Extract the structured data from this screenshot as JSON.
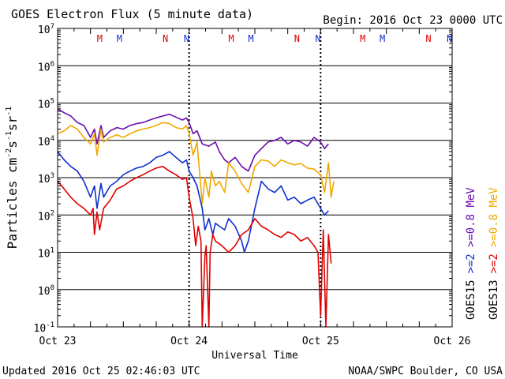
{
  "chart_data": {
    "type": "line",
    "title": "GOES Electron Flux (5 minute data)",
    "begin_label": "Begin: 2016 Oct 23 0000 UTC",
    "xlabel": "Universal Time",
    "ylabel": {
      "prefix": "Particles cm",
      "exp1": "-2",
      "s": "s",
      "exp2": "-1",
      "sr": "sr",
      "exp3": "-1"
    },
    "y_scale": "log",
    "ylim": [
      0.1,
      10000000
    ],
    "y_ticks": [
      {
        "exp": -1,
        "label_base": "10",
        "label_exp": "-1"
      },
      {
        "exp": 0,
        "label_base": "10",
        "label_exp": "0"
      },
      {
        "exp": 1,
        "label_base": "10",
        "label_exp": "1"
      },
      {
        "exp": 2,
        "label_base": "10",
        "label_exp": "2"
      },
      {
        "exp": 3,
        "label_base": "10",
        "label_exp": "3"
      },
      {
        "exp": 4,
        "label_base": "10",
        "label_exp": "4"
      },
      {
        "exp": 5,
        "label_base": "10",
        "label_exp": "5"
      },
      {
        "exp": 6,
        "label_base": "10",
        "label_exp": "6"
      },
      {
        "exp": 7,
        "label_base": "10",
        "label_exp": "7"
      }
    ],
    "x_unit": "days since 2016 Oct 23 0000 UTC",
    "xlim": [
      0,
      3
    ],
    "x_ticks": [
      {
        "value": 0,
        "label": "Oct 23"
      },
      {
        "value": 1,
        "label": "Oct 24"
      },
      {
        "value": 2,
        "label": "Oct 25"
      },
      {
        "value": 3,
        "label": "Oct 26"
      }
    ],
    "threshold_line": {
      "value": 1000,
      "style": "dashed"
    },
    "markers": [
      {
        "label": "M",
        "x": 0.32,
        "color": "#e00000"
      },
      {
        "label": "M",
        "x": 0.47,
        "color": "#1030d0"
      },
      {
        "label": "N",
        "x": 0.82,
        "color": "#e00000"
      },
      {
        "label": "N",
        "x": 0.98,
        "color": "#1030d0"
      },
      {
        "label": "M",
        "x": 1.32,
        "color": "#e00000"
      },
      {
        "label": "M",
        "x": 1.47,
        "color": "#1030d0"
      },
      {
        "label": "N",
        "x": 1.82,
        "color": "#e00000"
      },
      {
        "label": "N",
        "x": 1.98,
        "color": "#1030d0"
      },
      {
        "label": "M",
        "x": 2.32,
        "color": "#e00000"
      },
      {
        "label": "M",
        "x": 2.47,
        "color": "#1030d0"
      },
      {
        "label": "N",
        "x": 2.82,
        "color": "#e00000"
      },
      {
        "label": "N",
        "x": 2.98,
        "color": "#1030d0"
      }
    ],
    "legend": [
      {
        "sat": "GOES13",
        "energy": ">=0.8 MeV",
        "color": "#f0a800",
        "emph_color": "#e00000"
      },
      {
        "sat": "GOES15",
        "energy": ">=0.8 MeV",
        "color": "#6a0dad",
        "emph_color": "#1030d0"
      }
    ],
    "legend_energies": [
      ">=2",
      ">=2"
    ],
    "series": [
      {
        "name": "GOES15 >=0.8 MeV",
        "color": "#6a0dad",
        "x": [
          0,
          0.05,
          0.1,
          0.15,
          0.2,
          0.25,
          0.28,
          0.3,
          0.33,
          0.35,
          0.4,
          0.45,
          0.5,
          0.55,
          0.6,
          0.65,
          0.7,
          0.75,
          0.8,
          0.85,
          0.9,
          0.95,
          0.98,
          1.0,
          1.03,
          1.06,
          1.1,
          1.15,
          1.2,
          1.23,
          1.27,
          1.3,
          1.35,
          1.4,
          1.45,
          1.5,
          1.55,
          1.6,
          1.65,
          1.7,
          1.75,
          1.8,
          1.85,
          1.9,
          1.95,
          2.0,
          2.03,
          2.06
        ],
        "y": [
          70000,
          55000,
          45000,
          30000,
          25000,
          12000,
          20000,
          8000,
          25000,
          12000,
          18000,
          22000,
          20000,
          25000,
          28000,
          30000,
          35000,
          40000,
          45000,
          50000,
          42000,
          35000,
          40000,
          30000,
          15000,
          18000,
          8000,
          7000,
          9000,
          5000,
          3000,
          2500,
          3500,
          2000,
          1500,
          4000,
          6000,
          9000,
          10000,
          12000,
          8000,
          10000,
          9000,
          7000,
          12000,
          9000,
          6000,
          8000
        ]
      },
      {
        "name": "GOES13 >=0.8 MeV",
        "color": "#f0a800",
        "x": [
          0,
          0.05,
          0.1,
          0.15,
          0.2,
          0.25,
          0.28,
          0.3,
          0.33,
          0.35,
          0.4,
          0.45,
          0.5,
          0.55,
          0.6,
          0.65,
          0.7,
          0.75,
          0.8,
          0.85,
          0.9,
          0.95,
          0.98,
          1.0,
          1.03,
          1.06,
          1.1,
          1.12,
          1.15,
          1.17,
          1.2,
          1.23,
          1.27,
          1.3,
          1.35,
          1.4,
          1.45,
          1.5,
          1.55,
          1.6,
          1.65,
          1.7,
          1.75,
          1.8,
          1.85,
          1.9,
          1.95,
          2.0,
          2.03,
          2.06,
          2.08,
          2.1
        ],
        "y": [
          15000,
          18000,
          25000,
          20000,
          12000,
          8000,
          15000,
          4000,
          20000,
          9000,
          12000,
          14000,
          12000,
          15000,
          18000,
          20000,
          22000,
          25000,
          30000,
          28000,
          22000,
          20000,
          25000,
          15000,
          4000,
          9000,
          200,
          1000,
          300,
          1500,
          600,
          800,
          400,
          2500,
          1500,
          700,
          400,
          2000,
          3000,
          2800,
          2000,
          3000,
          2500,
          2200,
          2400,
          1800,
          1700,
          1200,
          400,
          2500,
          300,
          800
        ]
      },
      {
        "name": "GOES15 >=2 MeV",
        "color": "#1030d0",
        "x": [
          0,
          0.05,
          0.1,
          0.15,
          0.2,
          0.25,
          0.28,
          0.3,
          0.33,
          0.35,
          0.4,
          0.45,
          0.5,
          0.55,
          0.6,
          0.65,
          0.7,
          0.75,
          0.8,
          0.85,
          0.9,
          0.95,
          0.98,
          1.0,
          1.03,
          1.06,
          1.1,
          1.12,
          1.15,
          1.18,
          1.2,
          1.23,
          1.27,
          1.3,
          1.35,
          1.4,
          1.42,
          1.45,
          1.5,
          1.55,
          1.6,
          1.65,
          1.7,
          1.75,
          1.8,
          1.85,
          1.9,
          1.95,
          2.0,
          2.03,
          2.06
        ],
        "y": [
          5000,
          3000,
          2000,
          1500,
          800,
          300,
          600,
          150,
          700,
          300,
          600,
          800,
          1200,
          1500,
          1800,
          2000,
          2500,
          3500,
          4000,
          5000,
          3500,
          2500,
          3000,
          1500,
          1000,
          600,
          150,
          40,
          80,
          30,
          60,
          50,
          40,
          80,
          50,
          20,
          10,
          20,
          150,
          800,
          500,
          400,
          600,
          250,
          300,
          200,
          250,
          300,
          150,
          100,
          130
        ]
      },
      {
        "name": "GOES13 >=2 MeV",
        "color": "#e00000",
        "x": [
          0,
          0.05,
          0.1,
          0.15,
          0.2,
          0.25,
          0.27,
          0.28,
          0.3,
          0.32,
          0.35,
          0.4,
          0.45,
          0.5,
          0.55,
          0.6,
          0.65,
          0.7,
          0.75,
          0.8,
          0.85,
          0.9,
          0.95,
          0.98,
          1.0,
          1.03,
          1.05,
          1.07,
          1.09,
          1.1,
          1.12,
          1.13,
          1.15,
          1.16,
          1.18,
          1.2,
          1.25,
          1.3,
          1.35,
          1.4,
          1.45,
          1.5,
          1.55,
          1.6,
          1.65,
          1.7,
          1.75,
          1.8,
          1.85,
          1.9,
          1.95,
          1.98,
          2.0,
          2.02,
          2.04,
          2.06,
          2.08
        ],
        "y": [
          800,
          500,
          300,
          200,
          150,
          100,
          150,
          30,
          120,
          40,
          150,
          250,
          500,
          600,
          800,
          1000,
          1200,
          1500,
          1800,
          2000,
          1500,
          1200,
          900,
          1000,
          300,
          80,
          15,
          50,
          20,
          0.1,
          8,
          15,
          0.1,
          10,
          30,
          20,
          15,
          10,
          15,
          30,
          40,
          80,
          50,
          40,
          30,
          25,
          35,
          30,
          20,
          25,
          15,
          10,
          0.2,
          40,
          0.1,
          30,
          5
        ]
      }
    ]
  },
  "footer": {
    "updated": "Updated 2016 Oct 25 02:46:03 UTC",
    "source": "NOAA/SWPC Boulder, CO USA"
  }
}
